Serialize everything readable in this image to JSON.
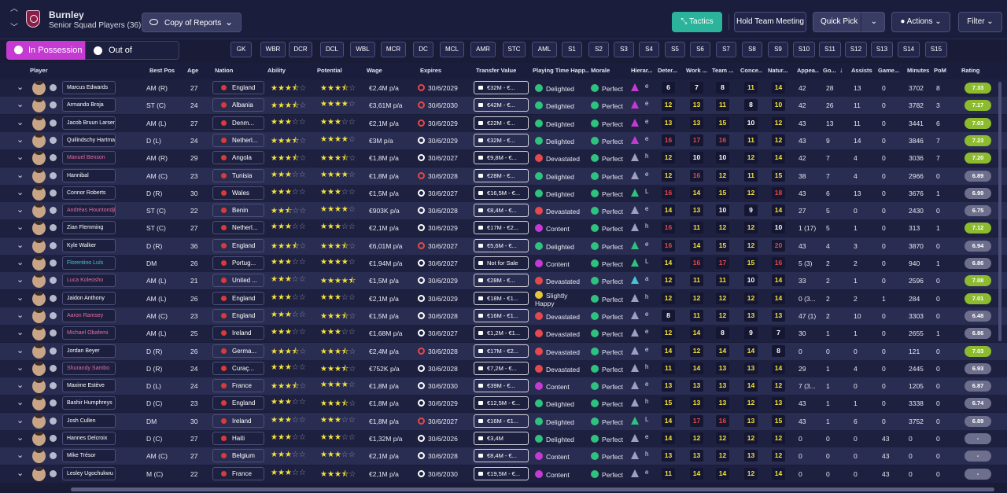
{
  "header": {
    "club": "Burnley",
    "squad_title": "Senior Squad Players (36)",
    "view_dropdown": "Copy of Reports",
    "tactics": "Tactics",
    "hold_meeting": "Hold Team Meeting",
    "quick_pick": "Quick Pick",
    "actions": "Actions",
    "filter": "Filter"
  },
  "tabs": {
    "in_possession": "In Possession",
    "out_possession": "Out of Possession"
  },
  "position_tabs": [
    "GK",
    "WBR",
    "DCR",
    "DCL",
    "WBL",
    "MCR",
    "DC",
    "MCL",
    "AMR",
    "STC",
    "AML",
    "S1",
    "S2",
    "S3",
    "S4",
    "S5",
    "S6",
    "S7",
    "S8",
    "S9",
    "S10",
    "S11",
    "S12",
    "S13",
    "S14",
    "S15"
  ],
  "columns": [
    "Player",
    "Best Pos",
    "Age",
    "Nation",
    "Ability",
    "Potential",
    "Wage",
    "Expires",
    "Transfer Value",
    "Playing Time Happ...",
    "Morale",
    "Hierar...",
    "Deter...",
    "Work ...",
    "Team ...",
    "Conce...",
    "Natur...",
    "Appea...",
    "Go...",
    "Assists",
    "Game...",
    "Minutes",
    "PoM",
    "Rating"
  ],
  "players": [
    {
      "name": "Marcus Edwards",
      "pos": "AM (R)",
      "age": "27",
      "nation": "England",
      "ab": 3.5,
      "pot": 3.5,
      "wage": "€2,4M p/a",
      "exp": "30/6/2029",
      "exp_red": true,
      "tv": "€32M - €...",
      "happy": "Delighted",
      "mood": "green",
      "morale": "Perfect",
      "tri": "#c43ad3",
      "h": "e",
      "d": "6",
      "w": "7",
      "t": "8",
      "c": "11",
      "n": "14",
      "cd": "wwwyy",
      "app": "42",
      "gls": "28",
      "ast": "13",
      "gw": "0",
      "min": "3702",
      "pom": "8",
      "rating": "7.33",
      "rc": "g",
      "nc": "loan0"
    },
    {
      "name": "Armando Broja",
      "pos": "ST (C)",
      "age": "24",
      "nation": "Albania",
      "ab": 3.5,
      "pot": 4,
      "wage": "€3,61M p/a",
      "exp": "30/6/2030",
      "exp_red": true,
      "tv": "€42M - €...",
      "happy": "Delighted",
      "mood": "green",
      "morale": "Perfect",
      "tri": "#c43ad3",
      "h": "e",
      "d": "12",
      "w": "13",
      "t": "11",
      "c": "8",
      "n": "10",
      "cd": "yyywy",
      "app": "42",
      "gls": "26",
      "ast": "11",
      "gw": "0",
      "min": "3782",
      "pom": "3",
      "rating": "7.17",
      "rc": "g",
      "nc": "loan0"
    },
    {
      "name": "Jacob Bruun Larsen",
      "pos": "AM (L)",
      "age": "27",
      "nation": "Denm...",
      "ab": 3,
      "pot": 3,
      "wage": "€2,1M p/a",
      "exp": "30/6/2029",
      "exp_red": true,
      "tv": "€22M - €...",
      "happy": "Delighted",
      "mood": "green",
      "morale": "Perfect",
      "tri": "#c43ad3",
      "h": "e",
      "d": "13",
      "w": "13",
      "t": "15",
      "c": "10",
      "n": "12",
      "cd": "yyywy",
      "app": "43",
      "gls": "13",
      "ast": "11",
      "gw": "0",
      "min": "3441",
      "pom": "6",
      "rating": "7.03",
      "rc": "g",
      "nc": "loan0"
    },
    {
      "name": "Quilindschy Hartman",
      "pos": "D (L)",
      "age": "24",
      "nation": "Netherl...",
      "ab": 3.5,
      "pot": 4,
      "wage": "€3M p/a",
      "exp": "30/6/2029",
      "exp_red": false,
      "tv": "€32M - €...",
      "happy": "Delighted",
      "mood": "green",
      "morale": "Perfect",
      "tri": "#c43ad3",
      "h": "e",
      "d": "16",
      "w": "17",
      "t": "16",
      "c": "11",
      "n": "12",
      "cd": "rrryy",
      "app": "43",
      "gls": "9",
      "ast": "14",
      "gw": "0",
      "min": "3846",
      "pom": "7",
      "rating": "7.23",
      "rc": "g",
      "nc": "loan0"
    },
    {
      "name": "Manuel Benson",
      "pos": "AM (R)",
      "age": "29",
      "nation": "Angola",
      "ab": 3.5,
      "pot": 3.5,
      "wage": "€1,8M p/a",
      "exp": "30/6/2027",
      "exp_red": false,
      "tv": "€9,8M - €...",
      "happy": "Devastated",
      "mood": "red",
      "morale": "Perfect",
      "tri": "#9da0c0",
      "h": "h",
      "d": "12",
      "w": "10",
      "t": "10",
      "c": "12",
      "n": "14",
      "cd": "ywwyy",
      "app": "42",
      "gls": "7",
      "ast": "4",
      "gw": "0",
      "min": "3036",
      "pom": "7",
      "rating": "7.20",
      "rc": "g",
      "nc": "loan"
    },
    {
      "name": "Hannibal",
      "pos": "AM (C)",
      "age": "23",
      "nation": "Tunisia",
      "ab": 3,
      "pot": 4,
      "wage": "€1,8M p/a",
      "exp": "30/6/2028",
      "exp_red": true,
      "tv": "€28M - €...",
      "happy": "Delighted",
      "mood": "green",
      "morale": "Perfect",
      "tri": "#9da0c0",
      "h": "e",
      "d": "12",
      "w": "16",
      "t": "12",
      "c": "11",
      "n": "15",
      "cd": "yryyy",
      "app": "38",
      "gls": "7",
      "ast": "4",
      "gw": "0",
      "min": "2966",
      "pom": "0",
      "rating": "6.89",
      "rc": "gr",
      "nc": "loan0"
    },
    {
      "name": "Connor Roberts",
      "pos": "D (R)",
      "age": "30",
      "nation": "Wales",
      "ab": 3,
      "pot": 3,
      "wage": "€1,5M p/a",
      "exp": "30/6/2027",
      "exp_red": false,
      "tv": "€16,5M - €...",
      "happy": "Delighted",
      "mood": "green",
      "morale": "Perfect",
      "tri": "#2ec27e",
      "h": "L",
      "d": "16",
      "w": "14",
      "t": "15",
      "c": "12",
      "n": "18",
      "cd": "ryyyr",
      "app": "43",
      "gls": "6",
      "ast": "13",
      "gw": "0",
      "min": "3676",
      "pom": "1",
      "rating": "6.99",
      "rc": "gr",
      "nc": "loan0"
    },
    {
      "name": "Andréas Hountondji",
      "pos": "ST (C)",
      "age": "22",
      "nation": "Benin",
      "ab": 2.5,
      "pot": 4,
      "wage": "€903K p/a",
      "exp": "30/6/2028",
      "exp_red": false,
      "tv": "€8,4M - €...",
      "happy": "Devastated",
      "mood": "red",
      "morale": "Perfect",
      "tri": "#9da0c0",
      "h": "e",
      "d": "14",
      "w": "13",
      "t": "10",
      "c": "9",
      "n": "14",
      "cd": "yywwy",
      "app": "27",
      "gls": "5",
      "ast": "0",
      "gw": "0",
      "min": "2430",
      "pom": "0",
      "rating": "6.75",
      "rc": "gr",
      "nc": "loan"
    },
    {
      "name": "Zian Flemming",
      "pos": "ST (C)",
      "age": "27",
      "nation": "Netherl...",
      "ab": 3,
      "pot": 3,
      "wage": "€2,1M p/a",
      "exp": "30/6/2029",
      "exp_red": false,
      "tv": "€17M - €2...",
      "happy": "Content",
      "mood": "purple",
      "morale": "Perfect",
      "tri": "#9da0c0",
      "h": "h",
      "d": "16",
      "w": "11",
      "t": "12",
      "c": "12",
      "n": "10",
      "cd": "ryyyw",
      "app": "1 (17)",
      "gls": "5",
      "ast": "1",
      "gw": "0",
      "min": "313",
      "pom": "1",
      "rating": "7.12",
      "rc": "g",
      "nc": "loan0"
    },
    {
      "name": "Kyle Walker",
      "pos": "D (R)",
      "age": "36",
      "nation": "England",
      "ab": 3.5,
      "pot": 3.5,
      "wage": "€6,01M p/a",
      "exp": "30/6/2027",
      "exp_red": true,
      "tv": "€5,6M - €...",
      "happy": "Delighted",
      "mood": "green",
      "morale": "Perfect",
      "tri": "#2ec27e",
      "h": "e",
      "d": "16",
      "w": "14",
      "t": "15",
      "c": "12",
      "n": "20",
      "cd": "ryyyr",
      "app": "43",
      "gls": "4",
      "ast": "3",
      "gw": "0",
      "min": "3870",
      "pom": "0",
      "rating": "6.94",
      "rc": "gr",
      "nc": "loan0"
    },
    {
      "name": "Florentino Luís",
      "pos": "DM",
      "age": "26",
      "nation": "Portug...",
      "ab": 3,
      "pot": 4,
      "wage": "€1,94M p/a",
      "exp": "30/6/2027",
      "exp_red": false,
      "tv": "Not for Sale",
      "happy": "Content",
      "mood": "purple",
      "morale": "Perfect",
      "tri": "#2ec27e",
      "h": "L",
      "d": "14",
      "w": "16",
      "t": "17",
      "c": "15",
      "n": "16",
      "cd": "yrryr",
      "app": "5 (3)",
      "gls": "2",
      "ast": "2",
      "gw": "0",
      "min": "940",
      "pom": "1",
      "rating": "6.86",
      "rc": "gr",
      "nc": "new"
    },
    {
      "name": "Luca Koleosho",
      "pos": "AM (L)",
      "age": "21",
      "nation": "United ...",
      "ab": 3,
      "pot": 4.5,
      "wage": "€1,5M p/a",
      "exp": "30/6/2029",
      "exp_red": false,
      "tv": "€28M - €...",
      "happy": "Devastated",
      "mood": "red",
      "morale": "Perfect",
      "tri": "#46c5d8",
      "h": "a",
      "d": "12",
      "w": "11",
      "t": "11",
      "c": "10",
      "n": "14",
      "cd": "yyywy",
      "app": "33",
      "gls": "2",
      "ast": "1",
      "gw": "0",
      "min": "2596",
      "pom": "0",
      "rating": "7.08",
      "rc": "g",
      "nc": "loan"
    },
    {
      "name": "Jaidon Anthony",
      "pos": "AM (L)",
      "age": "26",
      "nation": "England",
      "ab": 3,
      "pot": 3,
      "wage": "€2,1M p/a",
      "exp": "30/6/2029",
      "exp_red": false,
      "tv": "€18M - €1...",
      "happy": "Slightly Happy",
      "mood": "yellow",
      "morale": "Perfect",
      "tri": "#9da0c0",
      "h": "h",
      "d": "12",
      "w": "12",
      "t": "12",
      "c": "12",
      "n": "14",
      "cd": "yyyyy",
      "app": "0 (3...",
      "gls": "2",
      "ast": "2",
      "gw": "1",
      "min": "284",
      "pom": "0",
      "rating": "7.01",
      "rc": "g",
      "nc": "loan0"
    },
    {
      "name": "Aaron Ramsey",
      "pos": "AM (C)",
      "age": "23",
      "nation": "England",
      "ab": 3,
      "pot": 3.5,
      "wage": "€1,5M p/a",
      "exp": "30/6/2028",
      "exp_red": false,
      "tv": "€16M - €1...",
      "happy": "Devastated",
      "mood": "red",
      "morale": "Perfect",
      "tri": "#9da0c0",
      "h": "e",
      "d": "8",
      "w": "11",
      "t": "12",
      "c": "13",
      "n": "13",
      "cd": "wyyyy",
      "app": "47 (1)",
      "gls": "2",
      "ast": "10",
      "gw": "0",
      "min": "3303",
      "pom": "0",
      "rating": "6.48",
      "rc": "gr",
      "nc": "loan"
    },
    {
      "name": "Michael Obafemi",
      "pos": "AM (L)",
      "age": "25",
      "nation": "Ireland",
      "ab": 3,
      "pot": 3,
      "wage": "€1,68M p/a",
      "exp": "30/6/2027",
      "exp_red": false,
      "tv": "€1,2M - €1...",
      "happy": "Devastated",
      "mood": "red",
      "morale": "Perfect",
      "tri": "#9da0c0",
      "h": "e",
      "d": "12",
      "w": "14",
      "t": "8",
      "c": "9",
      "n": "7",
      "cd": "yywww",
      "app": "30",
      "gls": "1",
      "ast": "1",
      "gw": "0",
      "min": "2655",
      "pom": "1",
      "rating": "6.86",
      "rc": "gr",
      "nc": "loan"
    },
    {
      "name": "Jordan Beyer",
      "pos": "D (R)",
      "age": "26",
      "nation": "Germa...",
      "ab": 3.5,
      "pot": 3.5,
      "wage": "€2,4M p/a",
      "exp": "30/6/2028",
      "exp_red": true,
      "tv": "€17M - €2...",
      "happy": "Devastated",
      "mood": "red",
      "morale": "Perfect",
      "tri": "#9da0c0",
      "h": "e",
      "d": "14",
      "w": "12",
      "t": "14",
      "c": "14",
      "n": "8",
      "cd": "yyyyw",
      "app": "0",
      "gls": "0",
      "ast": "0",
      "gw": "0",
      "min": "121",
      "pom": "0",
      "rating": "7.03",
      "rc": "g",
      "nc": "loan0"
    },
    {
      "name": "Shurandy Sambo",
      "pos": "D (R)",
      "age": "24",
      "nation": "Curaç...",
      "ab": 3,
      "pot": 3.5,
      "wage": "€752K p/a",
      "exp": "30/6/2028",
      "exp_red": false,
      "tv": "€7,2M - €...",
      "happy": "Devastated",
      "mood": "red",
      "morale": "Perfect",
      "tri": "#9da0c0",
      "h": "h",
      "d": "11",
      "w": "14",
      "t": "13",
      "c": "13",
      "n": "14",
      "cd": "yyyyy",
      "app": "29",
      "gls": "1",
      "ast": "4",
      "gw": "0",
      "min": "2445",
      "pom": "0",
      "rating": "6.93",
      "rc": "gr",
      "nc": "loan"
    },
    {
      "name": "Maxime Estève",
      "pos": "D (L)",
      "age": "24",
      "nation": "France",
      "ab": 3.5,
      "pot": 4,
      "wage": "€1,8M p/a",
      "exp": "30/6/2030",
      "exp_red": false,
      "tv": "€39M - €...",
      "happy": "Content",
      "mood": "purple",
      "morale": "Perfect",
      "tri": "#9da0c0",
      "h": "e",
      "d": "13",
      "w": "13",
      "t": "13",
      "c": "14",
      "n": "12",
      "cd": "yyyyy",
      "app": "7 (3...",
      "gls": "1",
      "ast": "0",
      "gw": "0",
      "min": "1205",
      "pom": "0",
      "rating": "6.87",
      "rc": "gr",
      "nc": "loan0"
    },
    {
      "name": "Bashir Humphreys",
      "pos": "D (C)",
      "age": "23",
      "nation": "England",
      "ab": 3,
      "pot": 3.5,
      "wage": "€1,8M p/a",
      "exp": "30/6/2029",
      "exp_red": false,
      "tv": "€12,5M - €...",
      "happy": "Delighted",
      "mood": "green",
      "morale": "Perfect",
      "tri": "#9da0c0",
      "h": "h",
      "d": "15",
      "w": "13",
      "t": "13",
      "c": "12",
      "n": "13",
      "cd": "yyyyy",
      "app": "43",
      "gls": "1",
      "ast": "1",
      "gw": "0",
      "min": "3338",
      "pom": "0",
      "rating": "6.74",
      "rc": "gr",
      "nc": "loan0"
    },
    {
      "name": "Josh Cullen",
      "pos": "DM",
      "age": "30",
      "nation": "Ireland",
      "ab": 3,
      "pot": 3,
      "wage": "€1,8M p/a",
      "exp": "30/6/2027",
      "exp_red": true,
      "tv": "€16M - €1...",
      "happy": "Delighted",
      "mood": "green",
      "morale": "Perfect",
      "tri": "#2ec27e",
      "h": "L",
      "d": "14",
      "w": "17",
      "t": "16",
      "c": "13",
      "n": "15",
      "cd": "yrryy",
      "app": "43",
      "gls": "1",
      "ast": "6",
      "gw": "0",
      "min": "3752",
      "pom": "0",
      "rating": "6.89",
      "rc": "gr",
      "nc": "loan0"
    },
    {
      "name": "Hannes Delcroix",
      "pos": "D (C)",
      "age": "27",
      "nation": "Haiti",
      "ab": 3,
      "pot": 3,
      "wage": "€1,32M p/a",
      "exp": "30/6/2026",
      "exp_red": false,
      "tv": "€3,4M",
      "happy": "Delighted",
      "mood": "green",
      "morale": "Perfect",
      "tri": "#9da0c0",
      "h": "e",
      "d": "14",
      "w": "12",
      "t": "12",
      "c": "12",
      "n": "12",
      "cd": "yyyyy",
      "app": "0",
      "gls": "0",
      "ast": "0",
      "gw": "43",
      "min": "0",
      "pom": "0",
      "rating": "-",
      "rc": "gr",
      "nc": "loan0"
    },
    {
      "name": "Mike Trésor",
      "pos": "AM (C)",
      "age": "27",
      "nation": "Belgium",
      "ab": 3,
      "pot": 3,
      "wage": "€2,1M p/a",
      "exp": "30/6/2028",
      "exp_red": false,
      "tv": "€8,4M - €...",
      "happy": "Content",
      "mood": "purple",
      "morale": "Perfect",
      "tri": "#9da0c0",
      "h": "h",
      "d": "13",
      "w": "13",
      "t": "12",
      "c": "13",
      "n": "12",
      "cd": "yyyyy",
      "app": "0",
      "gls": "0",
      "ast": "0",
      "gw": "43",
      "min": "0",
      "pom": "0",
      "rating": "-",
      "rc": "gr",
      "nc": "loan0"
    },
    {
      "name": "Lesley Ugochukwu",
      "pos": "M (C)",
      "age": "22",
      "nation": "France",
      "ab": 3,
      "pot": 3.5,
      "wage": "€2,1M p/a",
      "exp": "30/6/2030",
      "exp_red": false,
      "tv": "€19,5M - €...",
      "happy": "Content",
      "mood": "purple",
      "morale": "Perfect",
      "tri": "#9da0c0",
      "h": "e",
      "d": "11",
      "w": "14",
      "t": "14",
      "c": "12",
      "n": "14",
      "cd": "yyyyy",
      "app": "0",
      "gls": "0",
      "ast": "0",
      "gw": "43",
      "min": "0",
      "pom": "0",
      "rating": "-",
      "rc": "gr",
      "nc": "loan0"
    }
  ]
}
